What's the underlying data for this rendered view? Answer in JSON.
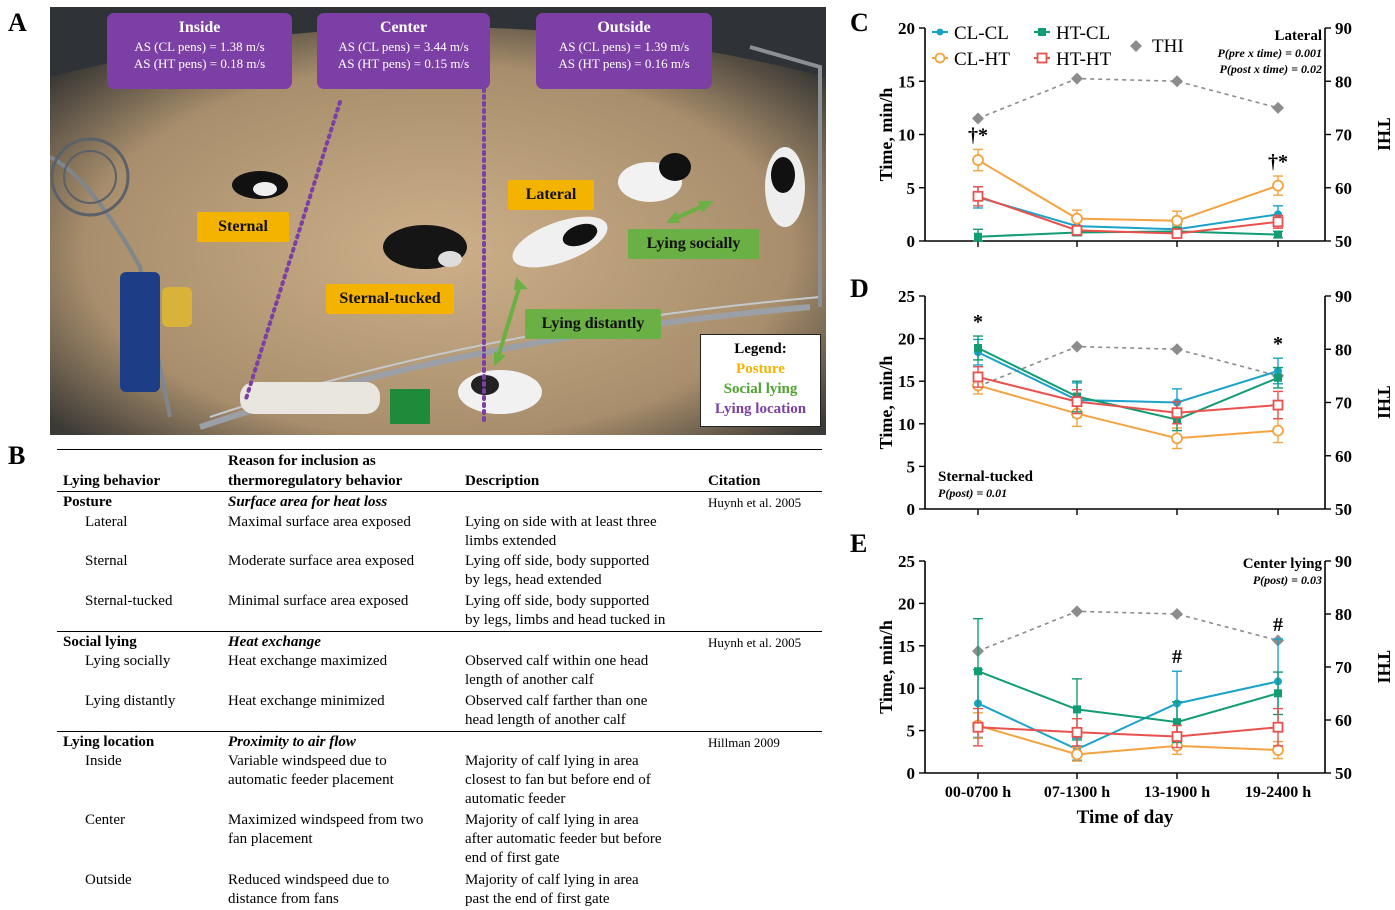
{
  "panels": {
    "a": "A",
    "b": "B",
    "c": "C",
    "d": "D",
    "e": "E"
  },
  "photo": {
    "callouts": [
      {
        "title": "Inside",
        "line1": "AS (CL pens) = 1.38 m/s",
        "line2": "AS (HT pens) = 0.18 m/s"
      },
      {
        "title": "Center",
        "line1": "AS (CL pens) = 3.44 m/s",
        "line2": "AS (HT pens) = 0.15 m/s"
      },
      {
        "title": "Outside",
        "line1": "AS (CL pens) = 1.39 m/s",
        "line2": "AS (HT pens) = 0.16 m/s"
      }
    ],
    "tags": {
      "sternal": "Sternal",
      "sternal_tucked": "Sternal-tucked",
      "lateral": "Lateral",
      "lying_socially": "Lying socially",
      "lying_distantly": "Lying distantly"
    },
    "legend": {
      "title": "Legend:",
      "posture": "Posture",
      "social": "Social lying",
      "location": "Lying location"
    },
    "colors": {
      "posture": "#f4b300",
      "social": "#6ab044",
      "location": "#7b3fa6"
    }
  },
  "table": {
    "headers": {
      "col1": "Lying behavior",
      "col2a": "Reason for inclusion as",
      "col2b": "thermoregulatory behavior",
      "col3": "Description",
      "col4": "Citation"
    },
    "sections": [
      {
        "name": "Posture",
        "reason": "Surface area for heat loss",
        "citation": "Huynh et al. 2005",
        "rows": [
          {
            "behavior": "Lateral",
            "reason": "Maximal surface area exposed",
            "desc1": "Lying on side with at least three",
            "desc2": "limbs extended"
          },
          {
            "behavior": "Sternal",
            "reason": "Moderate surface area exposed",
            "desc1": "Lying off side, body supported",
            "desc2": "by legs, head extended"
          },
          {
            "behavior": "Sternal-tucked",
            "reason": "Minimal surface area exposed",
            "desc1": "Lying off side, body supported",
            "desc2": "by legs, limbs and head tucked in"
          }
        ]
      },
      {
        "name": "Social lying",
        "reason": "Heat exchange",
        "citation": "Huynh et al. 2005",
        "rows": [
          {
            "behavior": "Lying socially",
            "reason": "Heat exchange maximized",
            "desc1": "Observed calf within one head",
            "desc2": "length of another calf"
          },
          {
            "behavior": "Lying distantly",
            "reason": "Heat exchange minimized",
            "desc1": "Observed calf farther than one",
            "desc2": "head length of another calf"
          }
        ]
      },
      {
        "name": "Lying location",
        "reason": "Proximity to air flow",
        "citation": "Hillman 2009",
        "rows": [
          {
            "behavior": "Inside",
            "reason1": "Variable windspeed due to",
            "reason2": "automatic feeder placement",
            "desc1": "Majority of calf lying in area",
            "desc2": "closest to fan but before end of",
            "desc3": "automatic feeder"
          },
          {
            "behavior": "Center",
            "reason1": "Maximized windspeed from two",
            "reason2": "fan placement",
            "desc1": "Majority of calf lying in area",
            "desc2": "after automatic feeder but before",
            "desc3": "end of first gate"
          },
          {
            "behavior": "Outside",
            "reason1": "Reduced windspeed due to",
            "reason2": "distance from fans",
            "desc1": "Majority of calf lying in area",
            "desc2": "past the end of first gate"
          }
        ]
      }
    ]
  },
  "chart_data": [
    {
      "panel": "C",
      "type": "line",
      "categories": [
        "00-0700 h",
        "07-1300 h",
        "13-1900 h",
        "19-2400 h"
      ],
      "ylabel": "Time, min/h",
      "ylabel_right": "THI",
      "ylim": [
        0,
        20
      ],
      "yticks": [
        0,
        5,
        10,
        15,
        20
      ],
      "ylim_right": [
        50,
        90
      ],
      "yticks_right": [
        50,
        60,
        70,
        80,
        90
      ],
      "title": "Lateral",
      "stats": [
        "P(pre x time) = 0.001",
        "P(post x time) = 0.02"
      ],
      "markers": [
        {
          "x": 0,
          "text": "†*"
        },
        {
          "x": 3,
          "text": "†*"
        }
      ],
      "series": [
        {
          "name": "CL-CL",
          "color": "#1aa3c9",
          "marker": "dot",
          "values": [
            4.1,
            1.4,
            1.1,
            2.5
          ],
          "err": [
            1.0,
            0.8,
            0.4,
            0.8
          ]
        },
        {
          "name": "CL-HT",
          "color": "#f4a340",
          "marker": "open-circle",
          "values": [
            7.6,
            2.1,
            1.9,
            5.2
          ],
          "err": [
            1.0,
            0.8,
            0.9,
            0.9
          ]
        },
        {
          "name": "HT-CL",
          "color": "#129c74",
          "marker": "square",
          "values": [
            0.4,
            0.8,
            0.9,
            0.6
          ],
          "err": [
            0.7,
            0.3,
            0.4,
            0.3
          ]
        },
        {
          "name": "HT-HT",
          "color": "#e8514d",
          "marker": "open-square",
          "values": [
            4.2,
            1.0,
            0.7,
            1.8
          ],
          "err": [
            0.9,
            0.4,
            0.3,
            0.6
          ]
        }
      ],
      "thi": {
        "name": "THI",
        "color": "#8c8c8c",
        "values": [
          73,
          80.5,
          80,
          75
        ]
      }
    },
    {
      "panel": "D",
      "type": "line",
      "categories": [
        "00-0700 h",
        "07-1300 h",
        "13-1900 h",
        "19-2400 h"
      ],
      "ylabel": "Time, min/h",
      "ylabel_right": "THI",
      "ylim": [
        0,
        25
      ],
      "yticks": [
        0,
        5,
        10,
        15,
        20,
        25
      ],
      "ylim_right": [
        50,
        90
      ],
      "yticks_right": [
        50,
        60,
        70,
        80,
        90
      ],
      "title": "Sternal-tucked",
      "stats": [
        "P(post) = 0.01"
      ],
      "markers": [
        {
          "x": 0,
          "text": "*"
        },
        {
          "x": 3,
          "text": "*"
        }
      ],
      "series": [
        {
          "name": "CL-CL",
          "color": "#1aa3c9",
          "marker": "dot",
          "values": [
            18.4,
            12.8,
            12.5,
            16.2
          ],
          "err": [
            1.5,
            2.0,
            1.6,
            1.5
          ]
        },
        {
          "name": "CL-HT",
          "color": "#f4a340",
          "marker": "open-circle",
          "values": [
            14.5,
            11.2,
            8.3,
            9.2
          ],
          "err": [
            1.0,
            1.5,
            1.2,
            1.4
          ]
        },
        {
          "name": "HT-CL",
          "color": "#129c74",
          "marker": "square",
          "values": [
            18.9,
            13.2,
            10.5,
            15.4
          ],
          "err": [
            1.4,
            1.8,
            1.3,
            1.2
          ]
        },
        {
          "name": "HT-HT",
          "color": "#e8514d",
          "marker": "open-square",
          "values": [
            15.5,
            12.6,
            11.3,
            12.2
          ],
          "err": [
            1.2,
            1.4,
            1.3,
            1.6
          ]
        }
      ],
      "thi": {
        "name": "THI",
        "color": "#8c8c8c",
        "values": [
          73,
          80.5,
          80,
          75
        ]
      }
    },
    {
      "panel": "E",
      "type": "line",
      "categories": [
        "00-0700 h",
        "07-1300 h",
        "13-1900 h",
        "19-2400 h"
      ],
      "xlabel": "Time of day",
      "ylabel": "Time, min/h",
      "ylabel_right": "THI",
      "ylim": [
        0,
        25
      ],
      "yticks": [
        0,
        5,
        10,
        15,
        20,
        25
      ],
      "ylim_right": [
        50,
        90
      ],
      "yticks_right": [
        50,
        60,
        70,
        80,
        90
      ],
      "title": "Center lying",
      "stats": [
        "P(post) = 0.03"
      ],
      "markers": [
        {
          "x": 2,
          "text": "#"
        },
        {
          "x": 3,
          "text": "#"
        }
      ],
      "series": [
        {
          "name": "CL-CL",
          "color": "#1aa3c9",
          "marker": "dot",
          "values": [
            8.2,
            2.8,
            8.2,
            10.8
          ],
          "err": [
            4.0,
            1.3,
            3.8,
            5.0
          ]
        },
        {
          "name": "CL-HT",
          "color": "#f4a340",
          "marker": "open-circle",
          "values": [
            5.6,
            2.2,
            3.2,
            2.7
          ],
          "err": [
            1.5,
            0.8,
            1.0,
            1.0
          ]
        },
        {
          "name": "HT-CL",
          "color": "#129c74",
          "marker": "square",
          "values": [
            12.0,
            7.5,
            6.0,
            9.4
          ],
          "err": [
            6.2,
            3.6,
            2.4,
            2.5
          ]
        },
        {
          "name": "HT-HT",
          "color": "#e8514d",
          "marker": "open-square",
          "values": [
            5.4,
            4.8,
            4.3,
            5.4
          ],
          "err": [
            2.2,
            1.6,
            1.3,
            2.2
          ]
        }
      ],
      "thi": {
        "name": "THI",
        "color": "#8c8c8c",
        "values": [
          73,
          80.5,
          80,
          75
        ]
      }
    }
  ],
  "chart_legend": [
    "CL-CL",
    "HT-CL",
    "THI",
    "CL-HT",
    "HT-HT"
  ]
}
